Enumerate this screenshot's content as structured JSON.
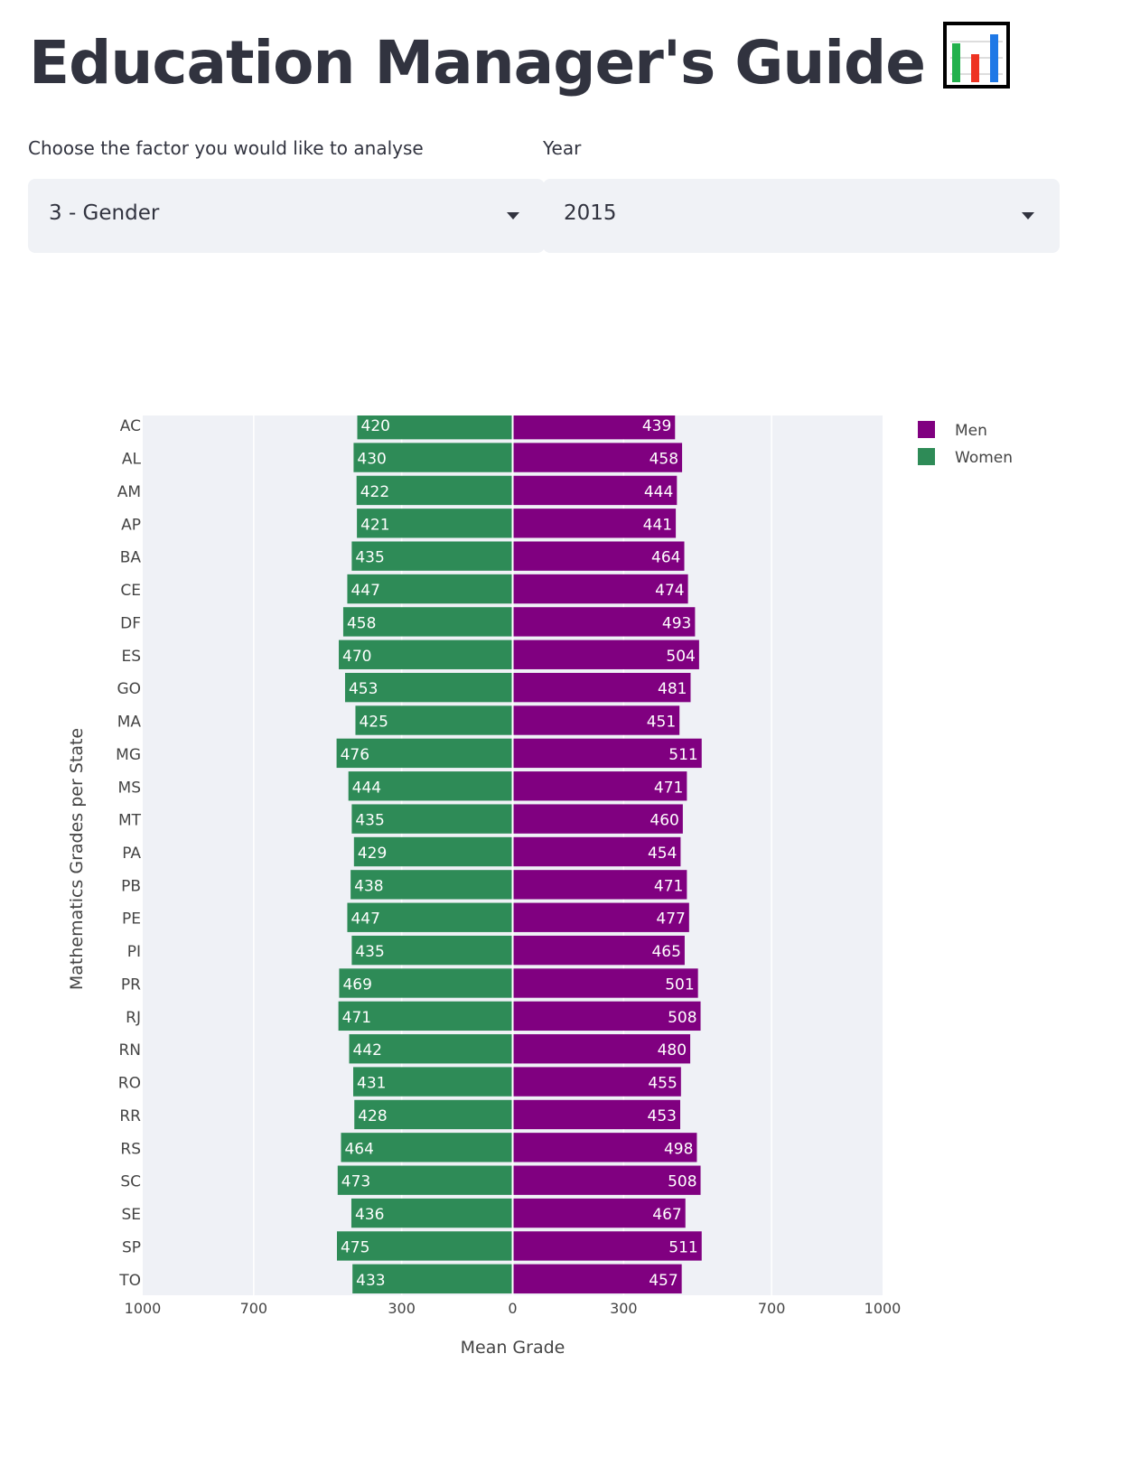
{
  "header": {
    "title": "Education Manager's Guide"
  },
  "controls": {
    "factor_label": "Choose the factor you would like to analyse",
    "factor_value": "3 - Gender",
    "year_label": "Year",
    "year_value": "2015"
  },
  "icons": {
    "title_icon": "bar-chart-icon",
    "dropdown_icon": "caret-down-icon"
  },
  "colors": {
    "men": "#800080",
    "women": "#2e8b57",
    "plot_bg": "#eff1f6"
  },
  "chart_data": {
    "type": "bar",
    "orientation": "horizontal-diverging",
    "xlabel": "Mean Grade",
    "ylabel": "Mathematics Grades per State",
    "x_ticks": [
      {
        "value": -1000,
        "label": "1000"
      },
      {
        "value": -700,
        "label": "700"
      },
      {
        "value": -300,
        "label": "300"
      },
      {
        "value": 0,
        "label": "0"
      },
      {
        "value": 300,
        "label": "300"
      },
      {
        "value": 700,
        "label": "700"
      },
      {
        "value": 1000,
        "label": "1000"
      }
    ],
    "xlim": [
      -1000,
      1000
    ],
    "grid": true,
    "legend": "top-right",
    "categories": [
      "AC",
      "AL",
      "AM",
      "AP",
      "BA",
      "CE",
      "DF",
      "ES",
      "GO",
      "MA",
      "MG",
      "MS",
      "MT",
      "PA",
      "PB",
      "PE",
      "PI",
      "PR",
      "RJ",
      "RN",
      "RO",
      "RR",
      "RS",
      "SC",
      "SE",
      "SP",
      "TO"
    ],
    "series": [
      {
        "name": "Men",
        "side": "right",
        "values": [
          439,
          458,
          444,
          441,
          464,
          474,
          493,
          504,
          481,
          451,
          511,
          471,
          460,
          454,
          471,
          477,
          465,
          501,
          508,
          480,
          455,
          453,
          498,
          508,
          467,
          511,
          457
        ]
      },
      {
        "name": "Women",
        "side": "left",
        "values": [
          420,
          430,
          422,
          421,
          435,
          447,
          458,
          470,
          453,
          425,
          476,
          444,
          435,
          429,
          438,
          447,
          435,
          469,
          471,
          442,
          431,
          428,
          464,
          473,
          436,
          475,
          433
        ]
      }
    ]
  }
}
